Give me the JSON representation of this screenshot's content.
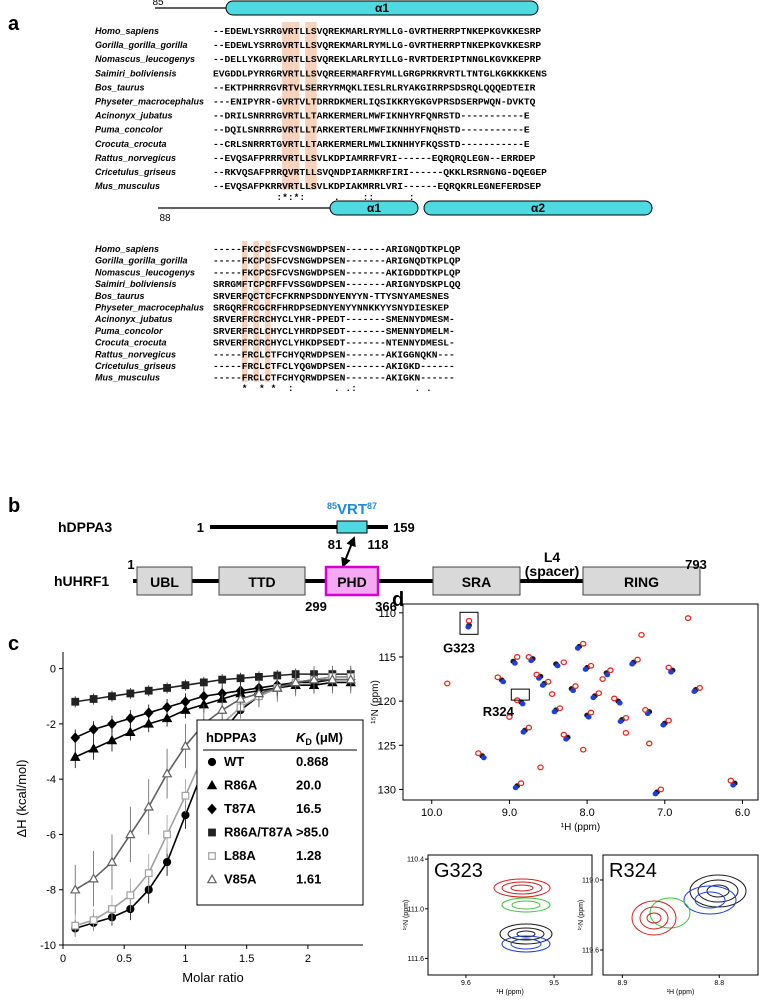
{
  "panel_labels": [
    "a",
    "b",
    "c",
    "d"
  ],
  "alignment": {
    "structure_top": {
      "start": 85,
      "helix": "α1"
    },
    "structure_bottom": {
      "start": 88,
      "helices": [
        "α1",
        "α2"
      ]
    },
    "species": [
      "Homo_sapiens",
      "Gorilla_gorilla_gorilla",
      "Nomascus_leucogenys",
      "Saimiri_boliviensis",
      "Bos_taurus",
      "Physeter_macrocephalus",
      "Acinonyx_jubatus",
      "Puma_concolor",
      "Crocuta_crocuta",
      "Rattus_norvegicus",
      "Cricetulus_griseus",
      "Mus_musculus"
    ],
    "block1": [
      "--EDEWLYSRRGVRTLLSVQREKMARLRYMLLG-GVRTHERRPTNKEPKGVKKESRP",
      "--EDEWLYSRRGVRTLLSVQREKMARLRYMLLG-GVRTHERRPTNKEPKGVKKESRP",
      "--DELLYKGRRGVRTLLSVQREKLARLRYILLG-RVRTDERIPTNNGLKGVKKEPRP",
      "EVGDDLPYRRGRVRTLLSVQREERMARFRYMLLGRGPRKRVRTLTNTGLKGKKKKENS",
      "--EKTPHRRRGVRTVLSERRYRMQKLIESLRLRYAKGIRRPSDSRQLQQQEDTEIR",
      "---ENIPYRR-GVRTVLTDRRDKMERLIQSIKKRYGKGVPRSDSERPWQN-DVKTQ",
      "--DRILSNRRRGVRTLLTARKERMERLMWFIKNHYRFQNRSTD-----------E",
      "--DQILSNRRRGVRTLLTARKERTERLMWFIKNHHYFNQHSTD-----------E",
      "--CRLSNRRRTGVRTLLTARKERMERLMWLIKNHHYFKQSSTD-----------E",
      "--EVQSAFPRRRVRTLLSVLKDPIAMRRFVRI------EQRQRQLEGN--ERRDEP",
      "--RKVQSAFPRRQVRTLLSVQNDPIARMKRFIRI------QKKLRSRNGNG-DQEGEP",
      "--EVQSAFPKRRVRTLLSVLKDPIAKMRRLVRI------EQRQKRLEGNEFERDSEP"
    ],
    "block1_conservation": "           :*:*:     .    ::      :",
    "block2": [
      "-----FKCPCSFCVSNGWDPSEN-------ARIGNQDTKPLQP",
      "-----FKCPCSFCVSNGWDPSEN-------ARIGNQDTKPLQP",
      "-----FKCPCSFCVSNGWDPSEN-------AKIGDDDTKPLQP",
      "SRRGMFTCPCRFFVSSGWDPSEN-------ARIGNYDSKPLQQ",
      "SRVERFQCTCFCFKRNPSDDNYENYYN-TTYSNYAMESNES",
      "SRGQRFRCGCRFHRDPSEDNYENYYNNKKYYSNYDIESKEP",
      "SRVERFRCRCHYCLYHR-PPEDT-------SMENNYDMESM-",
      "SRVERFRCLCHYCLYHRDPSEDT-------SMENNYDMELM-",
      "SRVERFRCRCHYCLYHKDPSEDT-------NTENNYDMESL-",
      "-----FRCLCTFCHYQRWDPSEN-------AKIGGNQKN---",
      "-----FRCLCTFCLYQGWDPSEN-------AKIGKD------",
      "-----FRCLCTFCHYQRWDPSEN-------AKIGKN------"
    ],
    "block2_conservation": "     *  * *  :       . .:          . ."
  },
  "domains": {
    "dppa3": {
      "name": "hDPPA3",
      "start": 1,
      "end": 159,
      "motif_start": 85,
      "motif": "VRT",
      "motif_end": 87,
      "region_start": 81,
      "region_end": 118
    },
    "uhrf1": {
      "name": "hUHRF1",
      "start": 1,
      "end": 793,
      "domains": [
        "UBL",
        "TTD",
        "PHD",
        "SRA",
        "RING"
      ],
      "phd_start": 299,
      "phd_end": 366,
      "linker": "L4",
      "linker_note": "(spacer)"
    }
  },
  "chart_data": [
    {
      "type": "line",
      "xlabel": "Molar ratio",
      "ylabel": "ΔH (kcal/mol)",
      "x": [
        0.1,
        0.25,
        0.4,
        0.55,
        0.7,
        0.85,
        1.0,
        1.15,
        1.3,
        1.45,
        1.6,
        1.75,
        1.9,
        2.05,
        2.2,
        2.35
      ],
      "xlim": [
        0,
        2.45
      ],
      "ylim": [
        -10,
        0.6
      ],
      "xticks": [
        0,
        0.5,
        1,
        1.5,
        2
      ],
      "yticks": [
        0,
        -2,
        -4,
        -6,
        -8,
        -10
      ],
      "legend_header": "hDPPA3",
      "legend_value_header": {
        "main": "K",
        "sub": "D",
        "unit": " (μM)"
      },
      "series": [
        {
          "name": "WT",
          "kd": "0.868",
          "color": "#000000",
          "marker": "circle",
          "filled": true,
          "values": [
            -9.4,
            -9.2,
            -9.0,
            -8.7,
            -8.0,
            -7.0,
            -5.3,
            -3.6,
            -2.3,
            -1.5,
            -1.0,
            -0.7,
            -0.5,
            -0.4,
            -0.3,
            -0.3
          ],
          "errors": [
            0.3,
            0.3,
            0.3,
            0.4,
            0.5,
            0.5,
            0.5,
            0.4,
            0.4,
            0.3,
            0.3,
            0.3,
            0.3,
            0.3,
            0.3,
            0.3
          ]
        },
        {
          "name": "R86A",
          "kd": "20.0",
          "color": "#000000",
          "marker": "triangle",
          "filled": true,
          "values": [
            -3.2,
            -2.9,
            -2.6,
            -2.3,
            -2.0,
            -1.8,
            -1.5,
            -1.3,
            -1.1,
            -0.9,
            -0.8,
            -0.7,
            -0.6,
            -0.6,
            -0.5,
            -0.5
          ],
          "errors": [
            0.4,
            0.4,
            0.4,
            0.3,
            0.3,
            0.3,
            0.3,
            0.3,
            0.3,
            0.3,
            0.3,
            0.3,
            0.3,
            0.3,
            0.3,
            0.3
          ]
        },
        {
          "name": "T87A",
          "kd": "16.5",
          "color": "#000000",
          "marker": "diamond",
          "filled": true,
          "values": [
            -2.5,
            -2.2,
            -2.0,
            -1.8,
            -1.6,
            -1.4,
            -1.2,
            -1.0,
            -0.9,
            -0.8,
            -0.7,
            -0.6,
            -0.5,
            -0.5,
            -0.4,
            -0.4
          ],
          "errors": [
            0.3,
            0.3,
            0.3,
            0.3,
            0.3,
            0.3,
            0.3,
            0.3,
            0.3,
            0.3,
            0.3,
            0.3,
            0.3,
            0.3,
            0.3,
            0.3
          ]
        },
        {
          "name": "R86A/T87A",
          "kd": ">85.0",
          "color": "#222222",
          "marker": "square",
          "filled": true,
          "values": [
            -1.2,
            -1.1,
            -1.0,
            -0.9,
            -0.8,
            -0.7,
            -0.6,
            -0.5,
            -0.4,
            -0.35,
            -0.3,
            -0.25,
            -0.2,
            -0.2,
            -0.2,
            -0.2
          ],
          "errors": [
            0.2,
            0.2,
            0.2,
            0.2,
            0.2,
            0.2,
            0.2,
            0.2,
            0.2,
            0.2,
            0.2,
            0.2,
            0.2,
            0.2,
            0.2,
            0.2
          ]
        },
        {
          "name": "L88A",
          "kd": "1.28",
          "color": "#a0a0a0",
          "marker": "square",
          "filled": false,
          "values": [
            -9.3,
            -9.1,
            -8.7,
            -8.2,
            -7.4,
            -6.0,
            -4.6,
            -3.1,
            -2.0,
            -1.4,
            -1.0,
            -0.7,
            -0.5,
            -0.4,
            -0.3,
            -0.3
          ],
          "errors": [
            0.4,
            0.4,
            0.5,
            0.6,
            0.7,
            0.7,
            0.6,
            0.6,
            0.5,
            0.4,
            0.4,
            0.4,
            0.4,
            0.4,
            0.4,
            0.4
          ]
        },
        {
          "name": "V85A",
          "kd": "1.61",
          "color": "#606060",
          "marker": "triangle",
          "filled": false,
          "values": [
            -8.0,
            -7.6,
            -7.0,
            -6.0,
            -5.0,
            -3.8,
            -2.8,
            -2.0,
            -1.5,
            -1.1,
            -0.9,
            -0.7,
            -0.5,
            -0.4,
            -0.4,
            -0.4
          ],
          "errors": [
            0.9,
            1.0,
            1.0,
            1.0,
            1.0,
            0.9,
            0.8,
            0.7,
            0.6,
            0.5,
            0.5,
            0.5,
            0.5,
            0.5,
            0.5,
            0.5
          ]
        }
      ]
    },
    {
      "type": "scatter",
      "xlabel": "¹H (ppm)",
      "ylabel": "¹⁵N (ppm)",
      "xlim": [
        10.37,
        5.8
      ],
      "ylim": [
        109,
        131.2
      ],
      "xticks": [
        {
          "value": 10,
          "label": "10.0"
        },
        {
          "value": 9,
          "label": "9.0"
        },
        {
          "value": 8,
          "label": "8.0"
        },
        {
          "value": 7,
          "label": "7.0"
        },
        {
          "value": 6,
          "label": "6.0"
        }
      ],
      "yticks": [
        110,
        115,
        120,
        125,
        130
      ],
      "series": [
        {
          "color": "#1a1a1a",
          "x": [
            9.52,
            8.1,
            8.95,
            8.7,
            8.4,
            8.0,
            7.75,
            7.4,
            6.9,
            6.6,
            9.1,
            8.55,
            8.2,
            7.9,
            7.6,
            7.2,
            8.85,
            8.4,
            8.0,
            7.55,
            8.8,
            8.25,
            9.35,
            8.9,
            7.1,
            6.1,
            8.6,
            7.0
          ],
          "y": [
            111.4,
            113.8,
            115.5,
            115.2,
            115.8,
            116.2,
            116.8,
            115.6,
            116.5,
            118.7,
            117.6,
            118.0,
            118.6,
            119.4,
            120.0,
            121.2,
            120.1,
            121.0,
            121.6,
            122.1,
            123.3,
            124.1,
            126.2,
            129.6,
            130.3,
            129.3,
            117.2,
            122.5
          ]
        },
        {
          "color": "#1f3fd8",
          "x": [
            9.53,
            8.12,
            8.93,
            8.72,
            8.38,
            8.02,
            7.74,
            7.42,
            6.92,
            6.62,
            9.08,
            8.57,
            8.18,
            7.92,
            7.58,
            7.22,
            8.83,
            8.42,
            7.98,
            7.57,
            8.82,
            8.27,
            9.33,
            8.92,
            7.12,
            6.12,
            8.62,
            7.02
          ],
          "y": [
            111.6,
            114.0,
            115.7,
            115.4,
            116.0,
            116.4,
            117.0,
            115.8,
            116.7,
            118.9,
            117.8,
            118.2,
            118.8,
            119.6,
            120.2,
            121.4,
            120.3,
            121.2,
            121.8,
            122.3,
            123.5,
            124.3,
            126.4,
            129.8,
            130.5,
            129.5,
            117.4,
            122.7
          ]
        },
        {
          "color": "#e0281e",
          "x": [
            9.52,
            8.05,
            8.9,
            8.75,
            8.3,
            7.95,
            7.7,
            7.35,
            6.95,
            6.55,
            9.15,
            8.5,
            8.15,
            7.85,
            7.65,
            7.25,
            8.9,
            8.35,
            7.95,
            7.5,
            8.75,
            8.3,
            9.4,
            8.85,
            7.05,
            6.15,
            8.65,
            6.95,
            9.8,
            7.3,
            8.45,
            7.8,
            7.5,
            7.2,
            8.05,
            9.0,
            6.7,
            8.6
          ],
          "y": [
            110.9,
            113.5,
            115.0,
            115.0,
            115.6,
            116.0,
            116.5,
            115.3,
            116.2,
            118.5,
            117.3,
            117.8,
            118.3,
            119.1,
            119.7,
            121.0,
            119.9,
            120.8,
            121.3,
            121.9,
            123.0,
            123.8,
            125.9,
            129.3,
            130.0,
            129.0,
            117.0,
            122.2,
            118.0,
            112.5,
            119.2,
            117.5,
            123.6,
            124.8,
            125.5,
            121.8,
            110.6,
            127.5
          ]
        }
      ],
      "annotations": [
        {
          "text": "G323",
          "x": 9.52,
          "y": 111.3
        },
        {
          "text": "R324",
          "x": 8.86,
          "y": 120.0
        }
      ]
    }
  ],
  "insets": [
    {
      "label": "G323",
      "xlabel": "¹H (ppm)",
      "ylabel": "¹⁵N (ppm)",
      "xlim": [
        9.643,
        9.457
      ],
      "ylim": [
        110.35,
        111.8
      ],
      "xticks": [
        9.6,
        9.5
      ],
      "yticks": [
        110.4,
        {
          "value": 111,
          "label": "111.0"
        },
        111.6
      ]
    },
    {
      "label": "R324",
      "xlabel": "¹H (ppm)",
      "ylabel": "¹⁵N (ppm)",
      "xlim": [
        8.92,
        8.76
      ],
      "ylim": [
        118.786,
        119.814
      ],
      "xticks": [
        8.9,
        8.8
      ],
      "yticks": [
        {
          "value": 119,
          "label": "119.0"
        },
        119.6
      ]
    }
  ]
}
